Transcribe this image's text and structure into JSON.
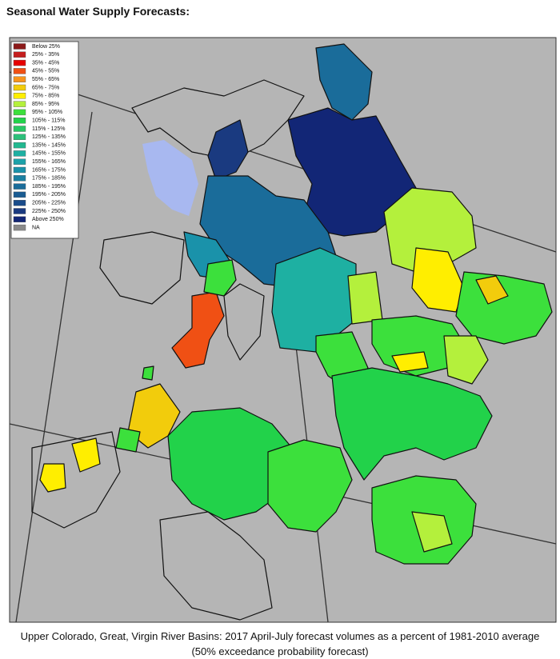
{
  "header": {
    "title": "Seasonal Water Supply Forecasts:"
  },
  "legend": [
    {
      "label": "Below 25%",
      "color": "#8b1a1a"
    },
    {
      "label": "25% -  35%",
      "color": "#c41e1e"
    },
    {
      "label": "35% -  45%",
      "color": "#e60000"
    },
    {
      "label": "45% -  55%",
      "color": "#f05014"
    },
    {
      "label": "55% -  65%",
      "color": "#f7941d"
    },
    {
      "label": "65% -  75%",
      "color": "#f2cc0c"
    },
    {
      "label": "75% -  85%",
      "color": "#ffee00"
    },
    {
      "label": "85% -  95%",
      "color": "#b4f03c"
    },
    {
      "label": "95% - 105%",
      "color": "#3ce03c"
    },
    {
      "label": "105% - 115%",
      "color": "#22d24a"
    },
    {
      "label": "115% - 125%",
      "color": "#28c864"
    },
    {
      "label": "125% - 135%",
      "color": "#2cc07a"
    },
    {
      "label": "135% - 145%",
      "color": "#22b890"
    },
    {
      "label": "145% - 155%",
      "color": "#1eb0a2"
    },
    {
      "label": "155% - 165%",
      "color": "#1ca2aa"
    },
    {
      "label": "165% - 175%",
      "color": "#1a92aa"
    },
    {
      "label": "175% - 185%",
      "color": "#1a80a2"
    },
    {
      "label": "185% - 195%",
      "color": "#1a6c9a"
    },
    {
      "label": "195% - 205%",
      "color": "#1a5c92"
    },
    {
      "label": "205% - 225%",
      "color": "#1a4c8a"
    },
    {
      "label": "225% - 250%",
      "color": "#1a3a80"
    },
    {
      "label": "Above 250%",
      "color": "#122676"
    },
    {
      "label": "NA",
      "color": "#8a8a8a"
    }
  ],
  "caption": {
    "line1": "Upper Colorado, Great, Virgin River Basins: 2017 April-July forecast volumes as a percent of 1981-2010 average",
    "line2": "(50% exceedance probability forecast)"
  }
}
